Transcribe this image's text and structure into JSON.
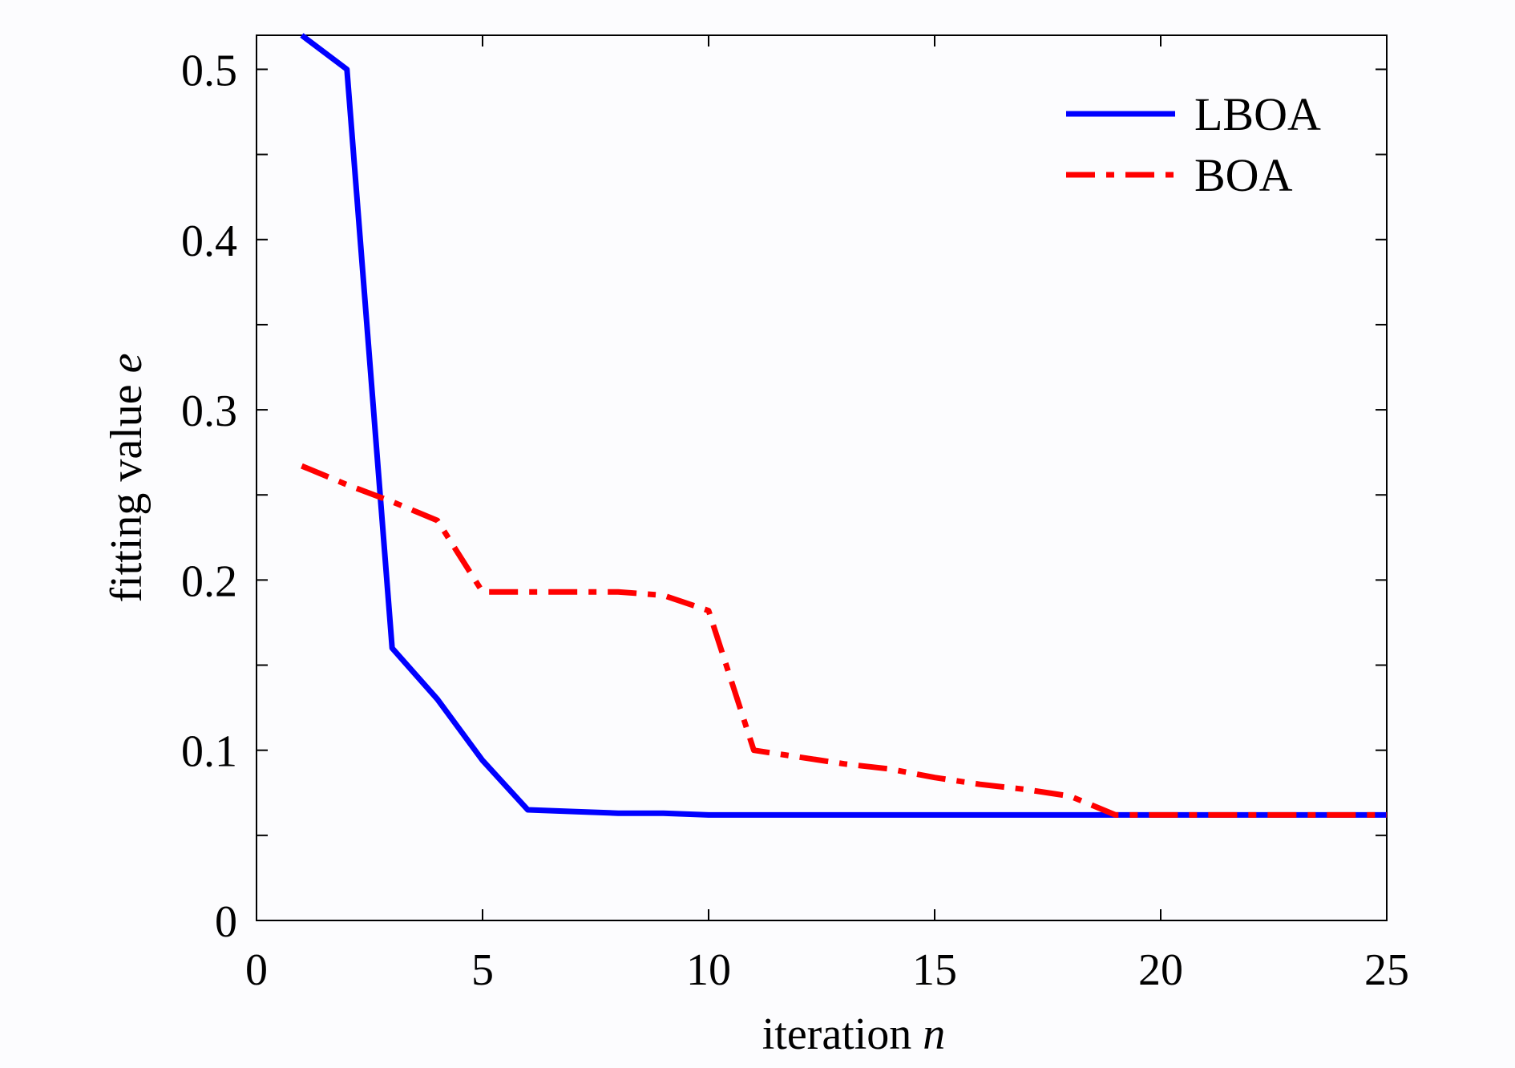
{
  "chart_data": {
    "type": "line",
    "xlabel": {
      "text": "iteration ",
      "var": "n"
    },
    "ylabel": {
      "text": "fitting value ",
      "var": "e"
    },
    "xlim": [
      0,
      25
    ],
    "ylim": [
      0,
      0.52
    ],
    "xticks": [
      0,
      5,
      10,
      15,
      20,
      25
    ],
    "xtick_labels": [
      "0",
      "5",
      "10",
      "15",
      "20",
      "25"
    ],
    "yticks": [
      0,
      0.1,
      0.2,
      0.3,
      0.4,
      0.5
    ],
    "ytick_labels": [
      "0",
      "0.1",
      "0.2",
      "0.3",
      "0.4",
      "0.5"
    ],
    "y_minor_step": 0.05,
    "grid": false,
    "legend": "top-right",
    "series": [
      {
        "name": "LBOA",
        "color": "#0000ff",
        "style": "solid",
        "x": [
          1,
          2,
          3,
          4,
          5,
          6,
          7,
          8,
          9,
          10,
          11,
          12,
          13,
          14,
          15,
          16,
          17,
          18,
          19,
          20,
          21,
          22,
          23,
          24,
          25
        ],
        "y": [
          0.52,
          0.5,
          0.16,
          0.13,
          0.094,
          0.065,
          0.064,
          0.063,
          0.063,
          0.062,
          0.062,
          0.062,
          0.062,
          0.062,
          0.062,
          0.062,
          0.062,
          0.062,
          0.062,
          0.062,
          0.062,
          0.062,
          0.062,
          0.062,
          0.062
        ]
      },
      {
        "name": "BOA",
        "color": "#ff0000",
        "style": "dashdot",
        "x": [
          1,
          2,
          3,
          4,
          5,
          6,
          7,
          8,
          9,
          10,
          11,
          12,
          13,
          14,
          15,
          16,
          17,
          18,
          19,
          20,
          21,
          22,
          23,
          24,
          25
        ],
        "y": [
          0.267,
          0.256,
          0.246,
          0.235,
          0.193,
          0.193,
          0.193,
          0.193,
          0.191,
          0.182,
          0.1,
          0.096,
          0.092,
          0.089,
          0.084,
          0.08,
          0.077,
          0.073,
          0.062,
          0.062,
          0.062,
          0.062,
          0.062,
          0.062,
          0.062
        ]
      }
    ]
  }
}
